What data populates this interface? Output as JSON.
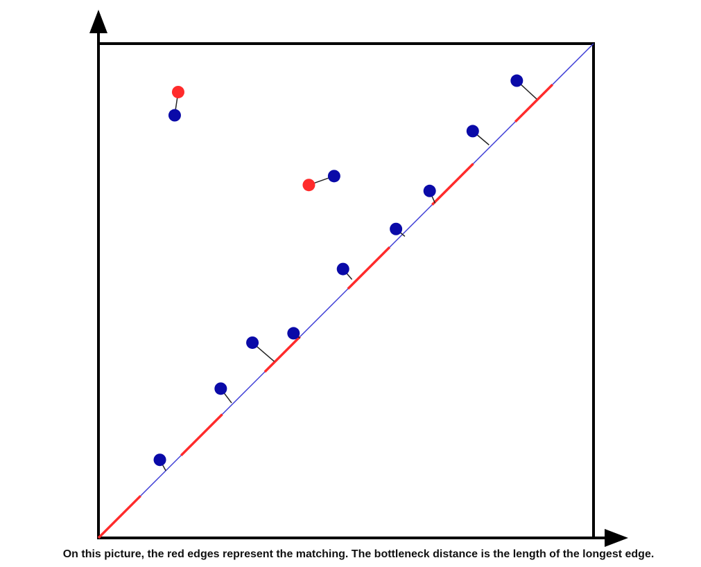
{
  "caption": "On this picture, the red edges represent the matching. The bottleneck distance is the length of the longest edge.",
  "colors": {
    "diagonal": "#3b3bd6",
    "diagonal_highlight": "#ff2b2b",
    "edge": "#222222",
    "point_blue": "#0a0aa8",
    "point_red": "#ff2b2b",
    "frame": "#000000"
  },
  "chart_data": {
    "type": "scatter",
    "title": "",
    "xlabel": "",
    "ylabel": "",
    "xlim": [
      0,
      1
    ],
    "ylim": [
      0,
      1
    ],
    "diagonal": true,
    "series": [
      {
        "color": "blue",
        "points": [
          {
            "x": 0.124,
            "y": 0.158
          },
          {
            "x": 0.247,
            "y": 0.302
          },
          {
            "x": 0.311,
            "y": 0.395
          },
          {
            "x": 0.394,
            "y": 0.414
          },
          {
            "x": 0.494,
            "y": 0.544
          },
          {
            "x": 0.601,
            "y": 0.625
          },
          {
            "x": 0.669,
            "y": 0.702
          },
          {
            "x": 0.756,
            "y": 0.823
          },
          {
            "x": 0.845,
            "y": 0.925
          },
          {
            "x": 0.154,
            "y": 0.855
          },
          {
            "x": 0.476,
            "y": 0.732
          }
        ]
      },
      {
        "color": "red",
        "points": [
          {
            "x": 0.161,
            "y": 0.902
          },
          {
            "x": 0.425,
            "y": 0.714
          }
        ]
      }
    ],
    "matching": [
      {
        "from": {
          "x": 0.124,
          "y": 0.158
        },
        "to": {
          "x": 0.136,
          "y": 0.136
        }
      },
      {
        "from": {
          "x": 0.247,
          "y": 0.302
        },
        "to": {
          "x": 0.269,
          "y": 0.273
        }
      },
      {
        "from": {
          "x": 0.311,
          "y": 0.395
        },
        "to": {
          "x": 0.355,
          "y": 0.357
        }
      },
      {
        "from": {
          "x": 0.394,
          "y": 0.414
        },
        "to": {
          "x": 0.407,
          "y": 0.404
        }
      },
      {
        "from": {
          "x": 0.494,
          "y": 0.544
        },
        "to": {
          "x": 0.512,
          "y": 0.523
        }
      },
      {
        "from": {
          "x": 0.601,
          "y": 0.625
        },
        "to": {
          "x": 0.619,
          "y": 0.61
        }
      },
      {
        "from": {
          "x": 0.669,
          "y": 0.702
        },
        "to": {
          "x": 0.68,
          "y": 0.677
        }
      },
      {
        "from": {
          "x": 0.756,
          "y": 0.823
        },
        "to": {
          "x": 0.789,
          "y": 0.795
        }
      },
      {
        "from": {
          "x": 0.845,
          "y": 0.925
        },
        "to": {
          "x": 0.885,
          "y": 0.888
        }
      },
      {
        "from": {
          "x": 0.154,
          "y": 0.855
        },
        "to": {
          "x": 0.161,
          "y": 0.902
        }
      },
      {
        "from": {
          "x": 0.476,
          "y": 0.732
        },
        "to": {
          "x": 0.425,
          "y": 0.714
        }
      }
    ],
    "diagonal_matched_segments": [
      [
        0.0,
        0.085
      ],
      [
        0.167,
        0.25
      ],
      [
        0.336,
        0.407
      ],
      [
        0.504,
        0.588
      ],
      [
        0.674,
        0.757
      ],
      [
        0.842,
        0.917
      ]
    ]
  }
}
